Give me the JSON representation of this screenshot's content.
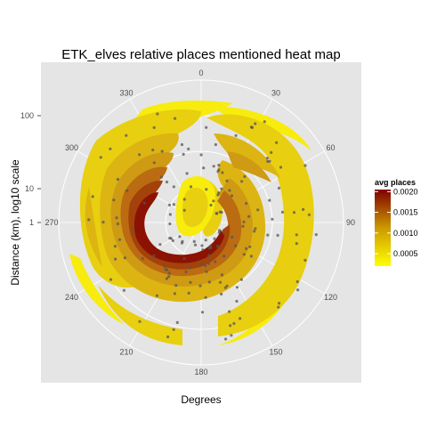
{
  "chart_data": {
    "type": "heatmap",
    "subtype": "polar-contour",
    "title": "ETK_elves relative places mentioned heat map",
    "xlabel": "Degrees",
    "ylabel": "Distance (km), log10 scale",
    "angle_ticks": [
      "0",
      "30",
      "60",
      "90",
      "120",
      "150",
      "180",
      "210",
      "240",
      "270",
      "300",
      "330"
    ],
    "angle_values": [
      0,
      30,
      60,
      90,
      120,
      150,
      180,
      210,
      240,
      270,
      300,
      330
    ],
    "radial_ticks": [
      "1",
      "10",
      "100"
    ],
    "radial_values": [
      1,
      10,
      100
    ],
    "radial_scale": "log10",
    "legend": {
      "title": "avg places",
      "ticks": [
        "0.0005",
        "0.0010",
        "0.0015",
        "0.0020"
      ],
      "tick_values": [
        0.0005,
        0.001,
        0.0015,
        0.002
      ],
      "range": [
        0.0002,
        0.00205
      ],
      "low_color": "#ffff00",
      "mid_color": "#cc9900",
      "high_color": "#7f0000",
      "placement": "right"
    },
    "contour_levels": [
      {
        "level": 0.0003,
        "color": "#f7ec0e"
      },
      {
        "level": 0.0006,
        "color": "#e8cf10"
      },
      {
        "level": 0.0009,
        "color": "#dcb512"
      },
      {
        "level": 0.0012,
        "color": "#cf9a14"
      },
      {
        "level": 0.0015,
        "color": "#bb6b12"
      },
      {
        "level": 0.0018,
        "color": "#a3420b"
      },
      {
        "level": 0.002,
        "color": "#8c1203"
      }
    ],
    "grid": true,
    "panel_color": "#e5e5e5",
    "grid_color": "#ffffff",
    "points_color": "#555555"
  }
}
